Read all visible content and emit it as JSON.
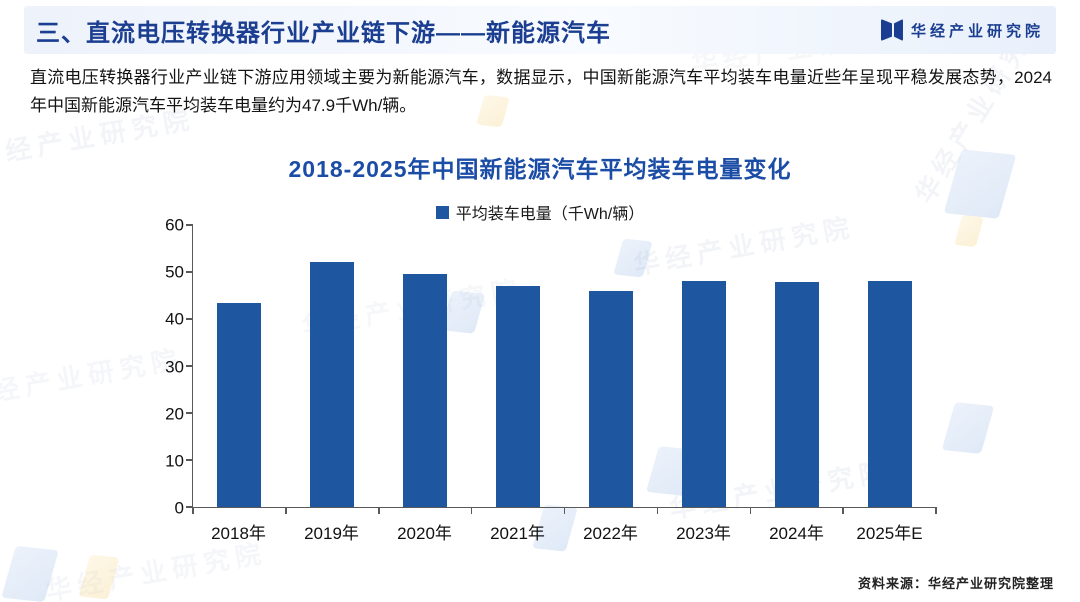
{
  "header": {
    "title": "三、直流电压转换器行业产业链下游——新能源汽车",
    "brand": "华经产业研究院"
  },
  "intro": {
    "text": "直流电压转换器行业产业链下游应用领域主要为新能源汽车，数据显示，中国新能源汽车平均装车电量近些年呈现平稳发展态势，2024年中国新能源汽车平均装车电量约为47.9千Wh/辆。"
  },
  "chart_data": {
    "type": "bar",
    "title": "2018-2025年中国新能源汽车平均装车电量变化",
    "legend": "平均装车电量（千Wh/辆）",
    "categories": [
      "2018年",
      "2019年",
      "2020年",
      "2021年",
      "2022年",
      "2023年",
      "2024年",
      "2025年E"
    ],
    "values": [
      43.4,
      52.2,
      49.6,
      47.0,
      46.0,
      48.0,
      47.9,
      48.0
    ],
    "xlabel": "",
    "ylabel": "",
    "ylim": [
      0,
      60
    ],
    "ytick_step": 10,
    "grid": false,
    "legend_position": "top-center"
  },
  "source": {
    "text": "资料来源：华经产业研究院整理"
  },
  "watermark": {
    "text": "华经产业研究院"
  },
  "colors": {
    "bar": "#1e56a0",
    "title": "#1b3e91",
    "chart_title": "#1c4da6",
    "axis": "#595959"
  }
}
